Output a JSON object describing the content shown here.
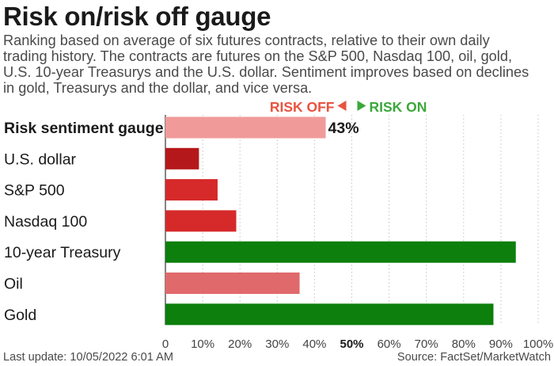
{
  "title": "Risk on/risk off gauge",
  "subtitle_lines": [
    "Ranking based on average of six futures contracts, relative to their own daily",
    "trading history. The contracts are futures on the S&P 500, Nasdaq 100, oil, gold,",
    "U.S. 10-year Treasurys and the U.S. dollar. Sentiment improves based on declines",
    "in gold, Treasurys and the dollar, and vice versa."
  ],
  "footer": {
    "last_update": "Last update: 10/05/2022 6:01 AM",
    "source": "Source: FactSet/MarketWatch"
  },
  "legend": {
    "risk_off": "RISK OFF",
    "risk_on": "RISK ON",
    "risk_off_color": "#e8533f",
    "risk_on_color": "#3aa83a"
  },
  "chart_data": {
    "type": "bar",
    "orientation": "horizontal",
    "title": "Risk on/risk off gauge",
    "categories": [
      "Risk sentiment gauge",
      "U.S. dollar",
      "S&P 500",
      "Nasdaq 100",
      "10-year Treasury",
      "Oil",
      "Gold"
    ],
    "values": [
      43,
      9,
      14,
      19,
      94,
      36,
      88
    ],
    "colors": [
      "#f19a9a",
      "#b5181a",
      "#d62929",
      "#d62929",
      "#0c7f0c",
      "#e0696b",
      "#0c7f0c"
    ],
    "value_labels": [
      "43%",
      "",
      "",
      "",
      "",
      "",
      ""
    ],
    "bold_categories": [
      "Risk sentiment gauge"
    ],
    "xlim": [
      0,
      100
    ],
    "x_ticks": [
      0,
      10,
      20,
      30,
      40,
      50,
      60,
      70,
      80,
      90,
      100
    ],
    "x_tick_labels": [
      "0",
      "10%",
      "20%",
      "30%",
      "40%",
      "50%",
      "60%",
      "70%",
      "80%",
      "90%",
      "100%"
    ],
    "emphasized_tick": 50,
    "grid": true,
    "xlabel": "",
    "ylabel": ""
  }
}
